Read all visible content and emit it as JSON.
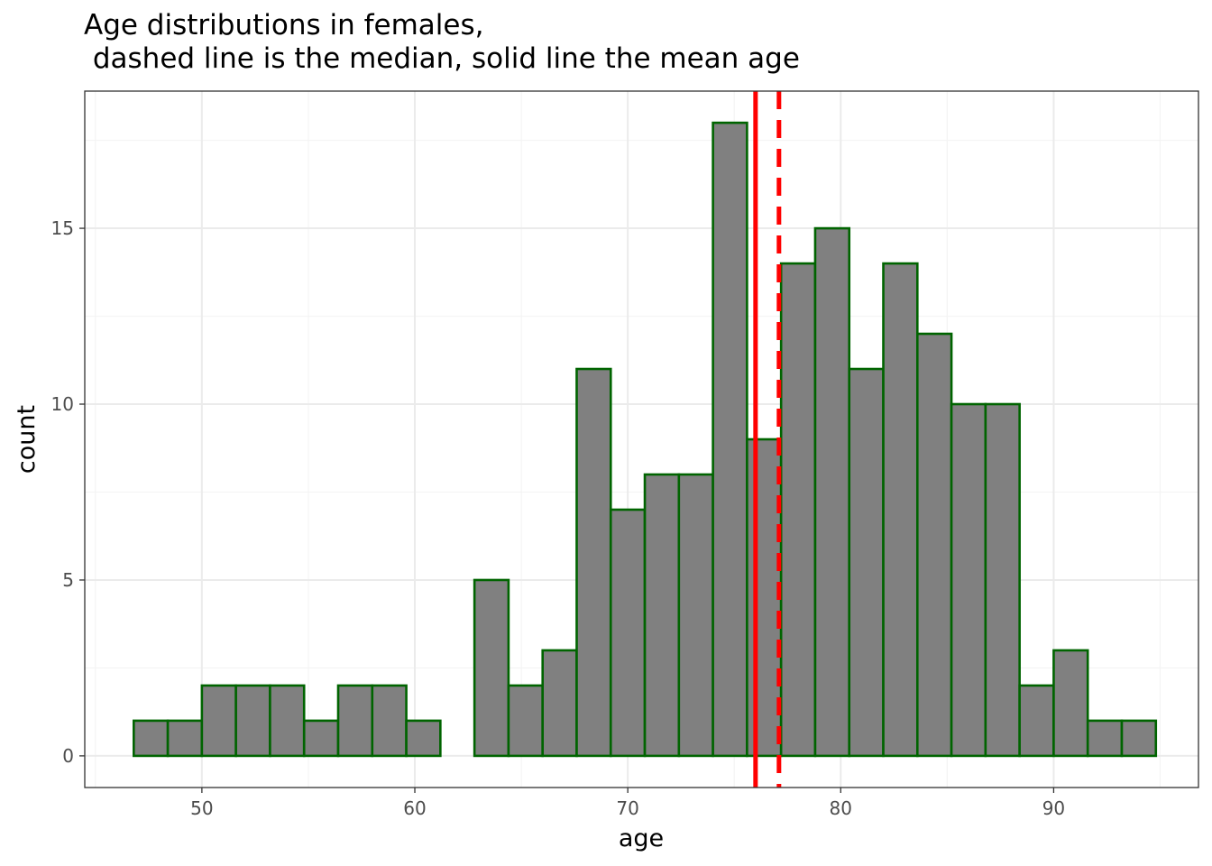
{
  "chart_data": {
    "type": "bar",
    "title_line1": "Age distributions in females,",
    "title_line2": " dashed line is the median, solid line the mean age",
    "xlabel": "age",
    "ylabel": "count",
    "xlim": [
      44.5,
      96.8
    ],
    "ylim": [
      -0.9,
      18.9
    ],
    "xticks": [
      50,
      60,
      70,
      80,
      90
    ],
    "yticks": [
      0,
      5,
      10,
      15
    ],
    "bin_width": 1.6,
    "bins": [
      {
        "start": 46.8,
        "end": 48.4,
        "count": 1
      },
      {
        "start": 48.4,
        "end": 50.0,
        "count": 1
      },
      {
        "start": 50.0,
        "end": 51.6,
        "count": 2
      },
      {
        "start": 51.6,
        "end": 53.2,
        "count": 2
      },
      {
        "start": 53.2,
        "end": 54.8,
        "count": 2
      },
      {
        "start": 54.8,
        "end": 56.4,
        "count": 1
      },
      {
        "start": 56.4,
        "end": 58.0,
        "count": 2
      },
      {
        "start": 58.0,
        "end": 59.6,
        "count": 2
      },
      {
        "start": 59.6,
        "end": 61.2,
        "count": 1
      },
      {
        "start": 61.2,
        "end": 62.8,
        "count": 0
      },
      {
        "start": 62.8,
        "end": 64.4,
        "count": 5
      },
      {
        "start": 64.4,
        "end": 66.0,
        "count": 2
      },
      {
        "start": 66.0,
        "end": 67.6,
        "count": 3
      },
      {
        "start": 67.6,
        "end": 69.2,
        "count": 11
      },
      {
        "start": 69.2,
        "end": 70.8,
        "count": 7
      },
      {
        "start": 70.8,
        "end": 72.4,
        "count": 8
      },
      {
        "start": 72.4,
        "end": 74.0,
        "count": 8
      },
      {
        "start": 74.0,
        "end": 75.6,
        "count": 18
      },
      {
        "start": 75.6,
        "end": 77.2,
        "count": 9
      },
      {
        "start": 77.2,
        "end": 78.8,
        "count": 14
      },
      {
        "start": 78.8,
        "end": 80.4,
        "count": 15
      },
      {
        "start": 80.4,
        "end": 82.0,
        "count": 11
      },
      {
        "start": 82.0,
        "end": 83.6,
        "count": 14
      },
      {
        "start": 83.6,
        "end": 85.2,
        "count": 12
      },
      {
        "start": 85.2,
        "end": 86.8,
        "count": 10
      },
      {
        "start": 86.8,
        "end": 88.4,
        "count": 10
      },
      {
        "start": 88.4,
        "end": 90.0,
        "count": 2
      },
      {
        "start": 90.0,
        "end": 91.6,
        "count": 3
      },
      {
        "start": 91.6,
        "end": 93.2,
        "count": 1
      },
      {
        "start": 93.2,
        "end": 94.8,
        "count": 1
      }
    ],
    "mean": 76.0,
    "median": 77.1,
    "colors": {
      "bar_fill": "#808080",
      "bar_stroke": "#006400",
      "mean_line": "#ff0000",
      "median_line": "#ff0000",
      "grid_major": "#ebebeb",
      "grid_minor": "#f4f4f4",
      "panel_border": "#333333",
      "tick_text": "#4d4d4d"
    },
    "grid": true,
    "legend": "none"
  }
}
